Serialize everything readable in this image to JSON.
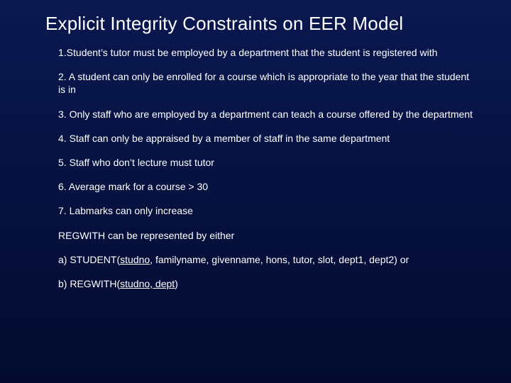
{
  "background": {
    "gradient_top": "#0a1850",
    "gradient_mid": "#061240",
    "gradient_bottom": "#030a2e"
  },
  "typography": {
    "title_fontsize": 26,
    "body_fontsize": 14,
    "font_family": "Arial",
    "text_color": "#ffffff"
  },
  "title": "Explicit Integrity Constraints on EER Model",
  "items": {
    "p1": "1.Student’s tutor must be employed by a department that the student is registered with",
    "p2": "2. A student can only be enrolled for a course which is appropriate to the year that the student is in",
    "p3": "3. Only staff who are employed by a department can teach a course offered by the department",
    "p4": "4. Staff can only be appraised by a member of staff in the same department",
    "p5": "5. Staff who don’t lecture must tutor",
    "p6": "6. Average mark for a course > 30",
    "p7": "7. Labmarks can only increase",
    "p8": "REGWITH can be represented by either",
    "p9a": "a) STUDENT(",
    "p9u": "studno",
    "p9b": ", familyname, givenname, hons, tutor, slot, dept1, dept2)    or",
    "p10a": "b) REGWITH(",
    "p10u": "studno, dept",
    "p10b": ")"
  }
}
